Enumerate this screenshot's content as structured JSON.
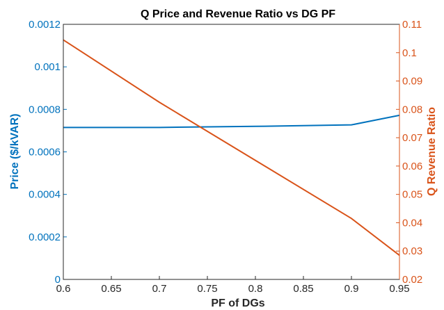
{
  "chart_data": {
    "type": "line",
    "title": "Q Price and Revenue Ratio vs DG PF",
    "xlabel": "PF of DGs",
    "xlim": [
      0.6,
      0.95
    ],
    "x_ticks": [
      "0.6",
      "0.65",
      "0.7",
      "0.75",
      "0.8",
      "0.85",
      "0.9",
      "0.95"
    ],
    "y_left": {
      "label": "Price ($/kVAR)",
      "lim": [
        0,
        0.0012
      ],
      "ticks": [
        "0",
        "0.0002",
        "0.0004",
        "0.0006",
        "0.0008",
        "0.001",
        "0.0012"
      ],
      "color": "#0072BD"
    },
    "y_right": {
      "label": "Q Revenue Ratio",
      "lim": [
        0.02,
        0.11
      ],
      "ticks": [
        "0.02",
        "0.03",
        "0.04",
        "0.05",
        "0.06",
        "0.07",
        "0.08",
        "0.09",
        "0.1",
        "0.11"
      ],
      "color": "#D95319"
    },
    "grid": false,
    "series": [
      {
        "axis": "left",
        "color": "#0072BD",
        "x": [
          0.6,
          0.7,
          0.8,
          0.9,
          0.95
        ],
        "y": [
          0.000715,
          0.000715,
          0.00072,
          0.000727,
          0.000772
        ]
      },
      {
        "axis": "right",
        "color": "#D95319",
        "x": [
          0.6,
          0.7,
          0.8,
          0.9,
          0.95
        ],
        "y": [
          0.1045,
          0.0825,
          0.062,
          0.0415,
          0.0285
        ]
      }
    ]
  }
}
